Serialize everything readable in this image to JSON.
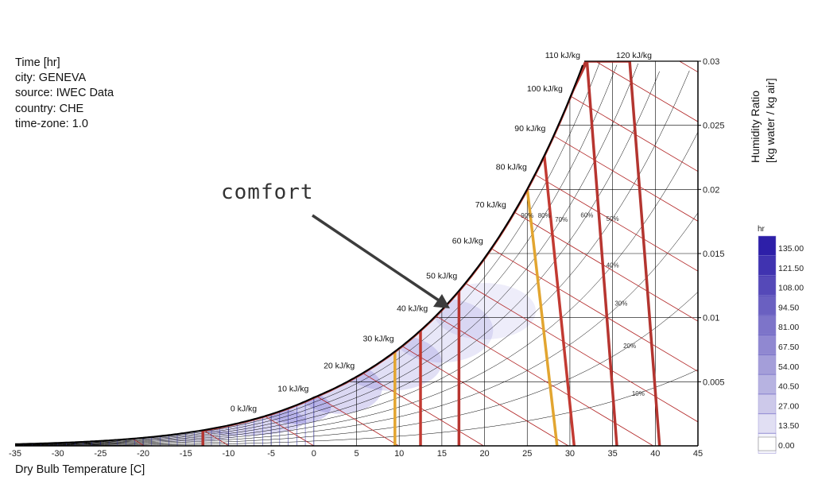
{
  "info": {
    "lines": [
      "Time [hr]",
      "city: GENEVA",
      "source: IWEC Data",
      "country: CHE",
      "time-zone: 1.0"
    ]
  },
  "chart_data": {
    "type": "psychrometric",
    "xlabel": "Dry Bulb Temperature [C]",
    "ylabel_line1": "Humidity Ratio",
    "ylabel_line2": "[kg water / kg air]",
    "xlim": [
      -35,
      45
    ],
    "ylim": [
      0,
      0.03
    ],
    "x_ticks": [
      "-35",
      "-30",
      "-25",
      "-20",
      "-15",
      "-10",
      "-5",
      "0",
      "5",
      "10",
      "15",
      "20",
      "25",
      "30",
      "35",
      "40",
      "45"
    ],
    "x_tick_values": [
      -35,
      -30,
      -25,
      -20,
      -15,
      -10,
      -5,
      0,
      5,
      10,
      15,
      20,
      25,
      30,
      35,
      40,
      45
    ],
    "y_ticks": [
      "0.005",
      "0.01",
      "0.015",
      "0.02",
      "0.025",
      "0.03"
    ],
    "y_tick_values": [
      0.005,
      0.01,
      0.015,
      0.02,
      0.025,
      0.03
    ],
    "enthalpy_labels": [
      "0 kJ/kg",
      "10 kJ/kg",
      "20 kJ/kg",
      "30 kJ/kg",
      "40 kJ/kg",
      "50 kJ/kg",
      "60 kJ/kg",
      "70 kJ/kg",
      "80 kJ/kg",
      "90 kJ/kg",
      "100 kJ/kg",
      "110 kJ/kg",
      "120 kJ/kg"
    ],
    "enthalpy_values": [
      0,
      10,
      20,
      30,
      40,
      50,
      60,
      70,
      80,
      90,
      100,
      110,
      120
    ],
    "rh_labels": [
      "10%",
      "20%",
      "30%",
      "40%",
      "50%",
      "60%",
      "70%",
      "80%",
      "90%"
    ],
    "rh_values": [
      10,
      20,
      30,
      40,
      50,
      60,
      70,
      80,
      90
    ],
    "comfort_polygons": [
      {
        "color": "#e2a530",
        "t_min": 9.5,
        "t_max": 28.5
      },
      {
        "color": "#c23a32",
        "t_min": 12.5,
        "t_max": 30.5
      },
      {
        "color": "#b73530",
        "t_min": 17,
        "t_max": 35.5
      },
      {
        "color": "#b33530",
        "t_min": -13,
        "t_max": 40.5
      }
    ],
    "legend": {
      "title": "hr",
      "values": [
        "135.00",
        "121.50",
        "108.00",
        "94.50",
        "81.00",
        "67.50",
        "54.00",
        "40.50",
        "27.00",
        "13.50",
        "0.00"
      ],
      "color_low": "#ffffff",
      "color_high": "#2d1fa8"
    },
    "annotation": {
      "text": "comfort"
    }
  }
}
